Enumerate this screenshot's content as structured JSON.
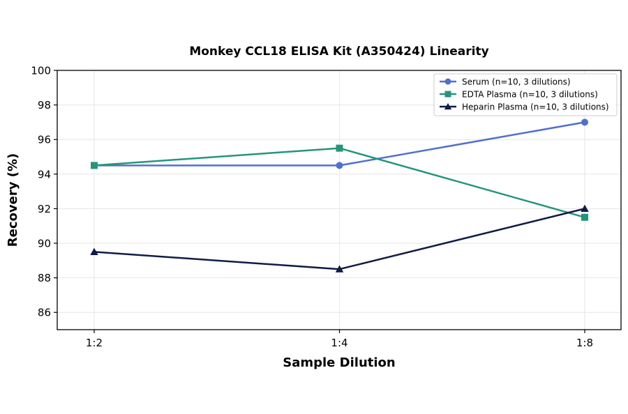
{
  "chart_data": {
    "type": "line",
    "title": "Monkey CCL18 ELISA Kit (A350424) Linearity",
    "xlabel": "Sample Dilution",
    "ylabel": "Recovery (%)",
    "categories": [
      "1:2",
      "1:4",
      "1:8"
    ],
    "ylim": [
      85,
      100
    ],
    "yticks": [
      86,
      88,
      90,
      92,
      94,
      96,
      98,
      100
    ],
    "grid": true,
    "legend_position": "top-right",
    "series": [
      {
        "name": "Serum (n=10, 3 dilutions)",
        "values": [
          94.5,
          94.5,
          97.0
        ],
        "color": "#4f6fd1",
        "marker": "circle"
      },
      {
        "name": "EDTA Plasma (n=10, 3 dilutions)",
        "values": [
          94.5,
          95.5,
          91.5
        ],
        "color": "#23967a",
        "marker": "square"
      },
      {
        "name": "Heparin Plasma (n=10, 3 dilutions)",
        "values": [
          89.5,
          88.5,
          92.0
        ],
        "color": "#0f1c45",
        "marker": "triangle"
      }
    ]
  }
}
